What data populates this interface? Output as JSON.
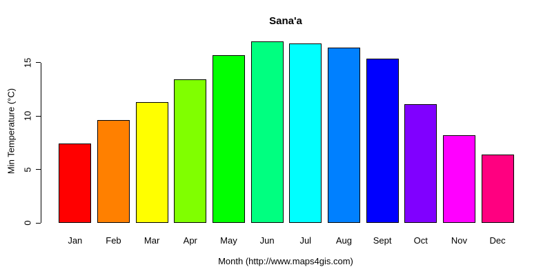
{
  "chart_data": {
    "type": "bar",
    "title": "Sana'a",
    "xlabel": "Month (http://www.maps4gis.com)",
    "ylabel": "Min Temperature (°C)",
    "categories": [
      "Jan",
      "Feb",
      "Mar",
      "Apr",
      "May",
      "Jun",
      "Jul",
      "Aug",
      "Sept",
      "Oct",
      "Nov",
      "Dec"
    ],
    "values": [
      7.4,
      9.6,
      11.3,
      13.4,
      15.7,
      17.0,
      16.8,
      16.4,
      15.4,
      11.1,
      8.2,
      6.4
    ],
    "bar_colors": [
      "#FF0000",
      "#FF8000",
      "#FFFF00",
      "#80FF00",
      "#00FF00",
      "#00FF80",
      "#00FFFF",
      "#0080FF",
      "#0000FF",
      "#8000FF",
      "#FF00FF",
      "#FF0080"
    ],
    "bar_border_color": "#000000",
    "yticks": [
      0,
      5,
      10,
      15
    ],
    "ylim": [
      0,
      17.6
    ],
    "grid": false,
    "legend": "none",
    "background": "#FFFFFF"
  }
}
